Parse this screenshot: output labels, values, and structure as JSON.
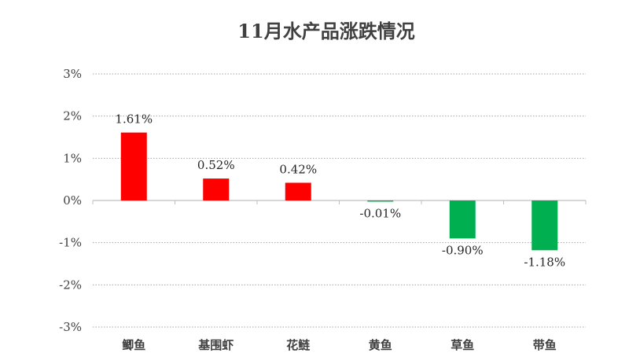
{
  "chart_data": {
    "type": "bar",
    "title": "11月水产品涨跌情况",
    "xlabel": "",
    "ylabel": "",
    "categories": [
      "鲫鱼",
      "基围虾",
      "花鲢",
      "黄鱼",
      "草鱼",
      "带鱼"
    ],
    "values": [
      1.61,
      0.52,
      0.42,
      -0.01,
      -0.9,
      -1.18
    ],
    "data_labels": [
      "1.61%",
      "0.52%",
      "0.42%",
      "-0.01%",
      "-0.90%",
      "-1.18%"
    ],
    "ylim": [
      -3,
      3
    ],
    "yticks": [
      3,
      2,
      1,
      0,
      -1,
      -2,
      -3
    ],
    "ytick_labels": [
      "3%",
      "2%",
      "1%",
      "0%",
      "-1%",
      "-2%",
      "-3%"
    ],
    "grid": "horizontal-dotted",
    "legend": "none",
    "colors": {
      "positive": "#ff0000",
      "negative": "#00b050",
      "grid": "#a6a6a6",
      "axis": "#bfbfbf",
      "text": "#404040"
    }
  }
}
